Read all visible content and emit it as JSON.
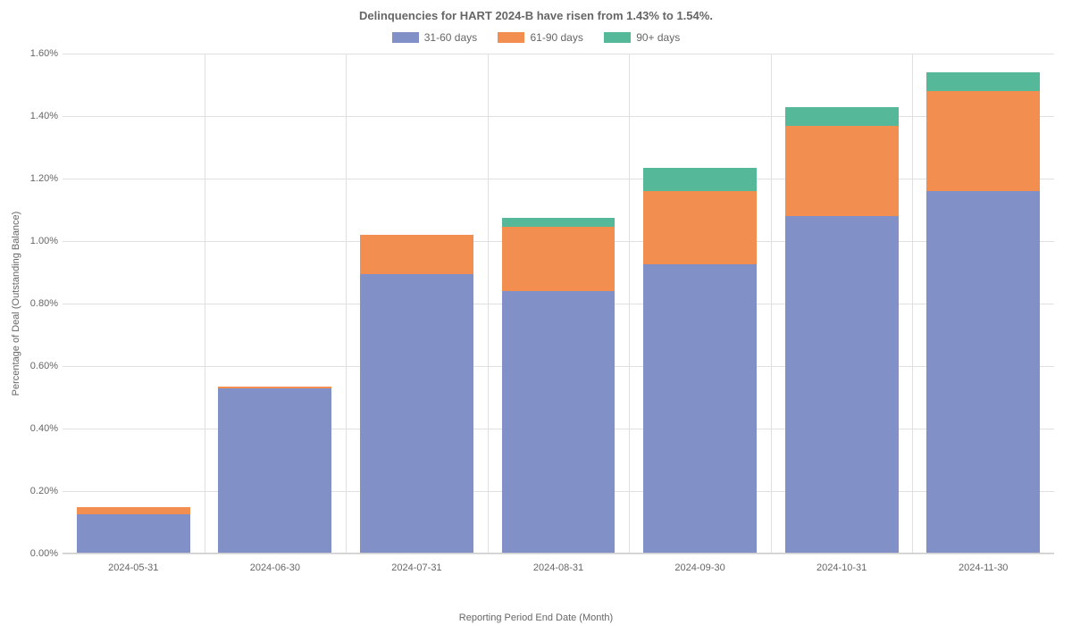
{
  "chart": {
    "type": "stacked-bar",
    "title": "Delinquencies for HART 2024-B have risen from 1.43% to 1.54%.",
    "title_fontsize": 13,
    "title_color": "#666666",
    "xlabel": "Reporting Period End Date (Month)",
    "ylabel": "Percentage of Deal (Outstanding Balance)",
    "label_fontsize": 11,
    "label_color": "#666666",
    "ylim": [
      0,
      1.6
    ],
    "ytick_step": 0.2,
    "yticks": [
      0.0,
      0.2,
      0.4,
      0.6,
      0.8,
      1.0,
      1.2,
      1.4,
      1.6
    ],
    "ytick_labels": [
      "0.00%",
      "0.20%",
      "0.40%",
      "0.60%",
      "0.80%",
      "1.00%",
      "1.20%",
      "1.40%",
      "1.60%"
    ],
    "background_color": "#ffffff",
    "grid_color": "#e0e0e0",
    "bar_width_ratio": 0.8,
    "legend_position": "top-center",
    "categories": [
      "2024-05-31",
      "2024-06-30",
      "2024-07-31",
      "2024-08-31",
      "2024-09-30",
      "2024-10-31",
      "2024-11-30"
    ],
    "series": [
      {
        "name": "31-60 days",
        "color": "#8290c8",
        "values": [
          0.125,
          0.53,
          0.895,
          0.84,
          0.925,
          1.08,
          1.16
        ]
      },
      {
        "name": "61-90 days",
        "color": "#f28e4f",
        "values": [
          0.025,
          0.005,
          0.125,
          0.205,
          0.235,
          0.29,
          0.32
        ]
      },
      {
        "name": "90+ days",
        "color": "#55b898",
        "values": [
          0.0,
          0.0,
          0.0,
          0.03,
          0.075,
          0.06,
          0.06
        ]
      }
    ]
  }
}
